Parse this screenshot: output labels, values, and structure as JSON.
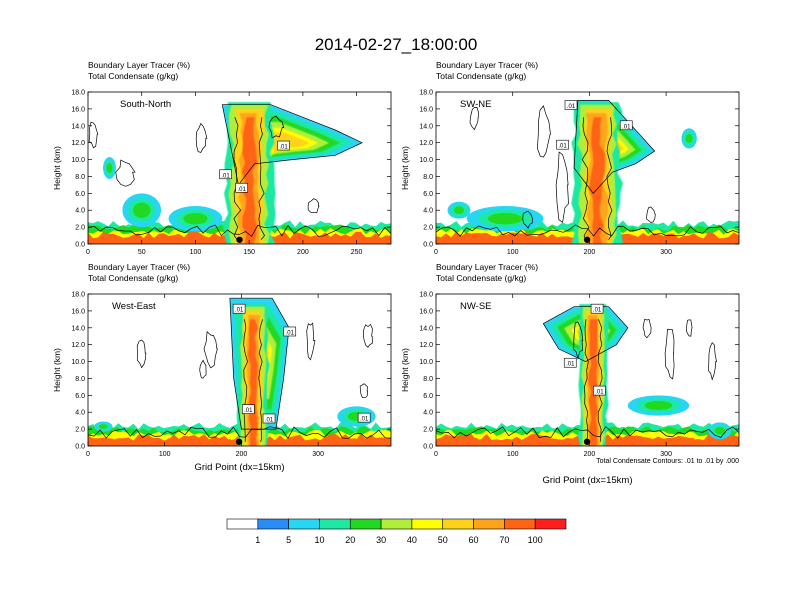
{
  "title": "2014-02-27_18:00:00",
  "colors": {
    "levels": [
      "#ffffff",
      "#2a8cf5",
      "#27d6f2",
      "#1ee8a2",
      "#21d921",
      "#b0ee3a",
      "#ffff00",
      "#ffd21a",
      "#ffa41a",
      "#ff6414",
      "#ff1e1e"
    ],
    "contour": "#000000",
    "marker": "#000000"
  },
  "chart_data": {
    "type": "heatmap",
    "fill_variable": "Boundary Layer Tracer",
    "fill_units": "(%)",
    "contour_variable": "Total Condensate",
    "contour_units": "(g/kg)",
    "contour_note": "Total Condensate Contours: .01 to .01 by .000",
    "colorbar_levels": [
      "1",
      "5",
      "10",
      "20",
      "30",
      "40",
      "50",
      "60",
      "70",
      "100"
    ],
    "panels": [
      {
        "name": "South-North",
        "ylabel": "Height (km)",
        "xlabel": "",
        "xlim": [
          0,
          282
        ],
        "ylim": [
          0,
          18
        ],
        "xticks": [
          "0",
          "50",
          "100",
          "150",
          "200",
          "250"
        ],
        "xtick_values": [
          0,
          50,
          100,
          150,
          200,
          250
        ],
        "yticks": [
          "0.0",
          "2.0",
          "4.0",
          "6.0",
          "8.0",
          "10.0",
          "12.0",
          "14.0",
          "16.0",
          "18.0"
        ],
        "marker_x": 141,
        "contour_labels": [
          ".01",
          ".01",
          ".01"
        ],
        "label_pos": [
          [
            128,
            8.2
          ],
          [
            143,
            6.6
          ],
          [
            182,
            11.6
          ]
        ],
        "plume_center": 150,
        "plume_width": 22,
        "anvil": [
          [
            125,
            16.5
          ],
          [
            170,
            16.5
          ],
          [
            230,
            13.5
          ],
          [
            255,
            12.0
          ],
          [
            230,
            10.5
          ],
          [
            190,
            10.0
          ],
          [
            155,
            9.5
          ],
          [
            140,
            7.0
          ]
        ],
        "extra_blobs": [
          [
            50,
            4.0,
            18,
            2.0
          ],
          [
            20,
            9.0,
            6,
            1.3
          ],
          [
            100,
            3.0,
            25,
            1.5
          ]
        ],
        "contour_blobs": [
          [
            35,
            8.5,
            8,
            1.5
          ],
          [
            175,
            13.8,
            6,
            1.2
          ],
          [
            5,
            13.0,
            4,
            1.5
          ],
          [
            105,
            12.5,
            5,
            1.8
          ],
          [
            210,
            4.5,
            5,
            0.8
          ]
        ]
      },
      {
        "name": "SW-NE",
        "ylabel": "Height (km)",
        "xlabel": "",
        "xlim": [
          0,
          395
        ],
        "ylim": [
          0,
          18
        ],
        "xticks": [
          "0",
          "100",
          "200",
          "300"
        ],
        "xtick_values": [
          0,
          100,
          200,
          300
        ],
        "yticks": [
          "0.0",
          "2.0",
          "4.0",
          "6.0",
          "8.0",
          "10.0",
          "12.0",
          "14.0",
          "16.0",
          "18.0"
        ],
        "marker_x": 197,
        "contour_labels": [
          ".01",
          ".01",
          ".01"
        ],
        "label_pos": [
          [
            176,
            16.4
          ],
          [
            165,
            11.7
          ],
          [
            248,
            14.0
          ]
        ],
        "plume_center": 210,
        "plume_width": 30,
        "anvil": [
          [
            185,
            17.0
          ],
          [
            225,
            17.0
          ],
          [
            265,
            13.0
          ],
          [
            285,
            11.0
          ],
          [
            260,
            9.5
          ],
          [
            230,
            8.5
          ],
          [
            205,
            6.0
          ],
          [
            180,
            9.0
          ]
        ],
        "extra_blobs": [
          [
            90,
            3.0,
            50,
            1.5
          ],
          [
            330,
            12.5,
            10,
            1.2
          ],
          [
            30,
            4.0,
            15,
            1.0
          ]
        ],
        "contour_blobs": [
          [
            140,
            13.0,
            8,
            3.0
          ],
          [
            50,
            15.0,
            6,
            1.2
          ],
          [
            165,
            7.0,
            8,
            4.0
          ],
          [
            120,
            3.0,
            6,
            1.0
          ],
          [
            280,
            3.5,
            6,
            1.0
          ]
        ]
      },
      {
        "name": "West-East",
        "ylabel": "Height (km)",
        "xlabel": "Grid Point (dx=15km)",
        "xlim": [
          0,
          395
        ],
        "ylim": [
          0,
          18
        ],
        "xticks": [
          "0",
          "100",
          "200",
          "300"
        ],
        "xtick_values": [
          0,
          100,
          200,
          300
        ],
        "yticks": [
          "0.0",
          "2.0",
          "4.0",
          "6.0",
          "8.0",
          "10.0",
          "12.0",
          "14.0",
          "16.0",
          "18.0"
        ],
        "marker_x": 197,
        "contour_labels": [
          ".01",
          ".01",
          ".01",
          ".01",
          ".01"
        ],
        "label_pos": [
          [
            197,
            16.2
          ],
          [
            263,
            13.5
          ],
          [
            209,
            4.3
          ],
          [
            236,
            3.2
          ],
          [
            360,
            3.3
          ]
        ],
        "plume_center": 215,
        "plume_width": 20,
        "anvil": [
          [
            185,
            17.5
          ],
          [
            240,
            17.5
          ],
          [
            262,
            14.0
          ],
          [
            255,
            8.0
          ],
          [
            245,
            2.0
          ],
          [
            200,
            2.0
          ],
          [
            190,
            8.0
          ]
        ],
        "extra_blobs": [
          [
            350,
            3.5,
            25,
            1.2
          ],
          [
            20,
            2.3,
            12,
            0.6
          ]
        ],
        "contour_blobs": [
          [
            70,
            11.0,
            6,
            1.5
          ],
          [
            160,
            11.5,
            8,
            2.0
          ],
          [
            290,
            12.5,
            5,
            2.0
          ],
          [
            365,
            13.0,
            6,
            1.5
          ],
          [
            150,
            9.0,
            4,
            1.0
          ],
          [
            360,
            6.5,
            5,
            1.0
          ]
        ]
      },
      {
        "name": "NW-SE",
        "ylabel": "Height (km)",
        "xlabel": "Grid Point (dx=15km)",
        "xlim": [
          0,
          395
        ],
        "ylim": [
          0,
          18
        ],
        "xticks": [
          "0",
          "100",
          "200",
          "300"
        ],
        "xtick_values": [
          0,
          100,
          200,
          300
        ],
        "yticks": [
          "0.0",
          "2.0",
          "4.0",
          "6.0",
          "8.0",
          "10.0",
          "12.0",
          "14.0",
          "16.0",
          "18.0"
        ],
        "marker_x": 197,
        "contour_labels": [
          ".01",
          ".01",
          ".01"
        ],
        "label_pos": [
          [
            210,
            16.2
          ],
          [
            175,
            9.8
          ],
          [
            213,
            6.5
          ]
        ],
        "plume_center": 205,
        "plume_width": 18,
        "anvil": [
          [
            140,
            14.5
          ],
          [
            180,
            16.5
          ],
          [
            225,
            16.5
          ],
          [
            250,
            14.0
          ],
          [
            235,
            12.0
          ],
          [
            215,
            11.0
          ],
          [
            195,
            10.0
          ],
          [
            160,
            11.5
          ]
        ],
        "extra_blobs": [
          [
            290,
            4.8,
            40,
            1.2
          ],
          [
            370,
            1.8,
            15,
            1.0
          ]
        ],
        "contour_blobs": [
          [
            305,
            11.0,
            6,
            3.0
          ],
          [
            360,
            10.0,
            5,
            2.0
          ],
          [
            275,
            14.0,
            5,
            1.0
          ],
          [
            185,
            12.5,
            6,
            2.0
          ],
          [
            330,
            14.0,
            4,
            1.0
          ]
        ]
      }
    ]
  }
}
